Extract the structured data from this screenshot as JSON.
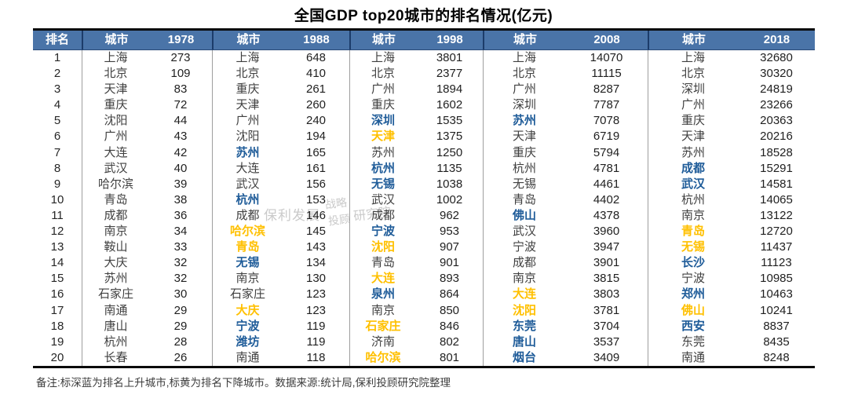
{
  "chart_data": {
    "type": "table",
    "title": "全国GDP top20城市的排名情况(亿元)",
    "rank_header": "排名",
    "city_header": "城市",
    "years": [
      "1978",
      "1988",
      "1998",
      "2008",
      "2018"
    ],
    "color_coding": {
      "up_city_blue": "#1f5c99",
      "down_city_yellow": "#ffc000",
      "header_background": "#4a74a8"
    },
    "rows": [
      {
        "rank": "1",
        "e": [
          [
            "上海",
            "273",
            "n"
          ],
          [
            "上海",
            "648",
            "n"
          ],
          [
            "上海",
            "3801",
            "n"
          ],
          [
            "上海",
            "14070",
            "n"
          ],
          [
            "上海",
            "32680",
            "n"
          ]
        ]
      },
      {
        "rank": "2",
        "e": [
          [
            "北京",
            "109",
            "n"
          ],
          [
            "北京",
            "410",
            "n"
          ],
          [
            "北京",
            "2377",
            "n"
          ],
          [
            "北京",
            "11115",
            "n"
          ],
          [
            "北京",
            "30320",
            "n"
          ]
        ]
      },
      {
        "rank": "3",
        "e": [
          [
            "天津",
            "83",
            "n"
          ],
          [
            "重庆",
            "261",
            "n"
          ],
          [
            "广州",
            "1894",
            "n"
          ],
          [
            "广州",
            "8287",
            "n"
          ],
          [
            "深圳",
            "24819",
            "n"
          ]
        ]
      },
      {
        "rank": "4",
        "e": [
          [
            "重庆",
            "72",
            "n"
          ],
          [
            "天津",
            "260",
            "n"
          ],
          [
            "重庆",
            "1602",
            "n"
          ],
          [
            "深圳",
            "7787",
            "n"
          ],
          [
            "广州",
            "23266",
            "n"
          ]
        ]
      },
      {
        "rank": "5",
        "e": [
          [
            "沈阳",
            "44",
            "n"
          ],
          [
            "广州",
            "240",
            "n"
          ],
          [
            "深圳",
            "1535",
            "u"
          ],
          [
            "苏州",
            "7078",
            "u"
          ],
          [
            "重庆",
            "20363",
            "n"
          ]
        ]
      },
      {
        "rank": "6",
        "e": [
          [
            "广州",
            "43",
            "n"
          ],
          [
            "沈阳",
            "194",
            "n"
          ],
          [
            "天津",
            "1375",
            "d"
          ],
          [
            "天津",
            "6719",
            "n"
          ],
          [
            "天津",
            "20216",
            "n"
          ]
        ]
      },
      {
        "rank": "7",
        "e": [
          [
            "大连",
            "42",
            "n"
          ],
          [
            "苏州",
            "165",
            "u"
          ],
          [
            "苏州",
            "1250",
            "n"
          ],
          [
            "重庆",
            "5794",
            "n"
          ],
          [
            "苏州",
            "18528",
            "n"
          ]
        ]
      },
      {
        "rank": "8",
        "e": [
          [
            "武汉",
            "40",
            "n"
          ],
          [
            "大连",
            "161",
            "n"
          ],
          [
            "杭州",
            "1135",
            "u"
          ],
          [
            "杭州",
            "4781",
            "n"
          ],
          [
            "成都",
            "15291",
            "u"
          ]
        ]
      },
      {
        "rank": "9",
        "e": [
          [
            "哈尔滨",
            "39",
            "n"
          ],
          [
            "武汉",
            "156",
            "n"
          ],
          [
            "无锡",
            "1038",
            "u"
          ],
          [
            "无锡",
            "4461",
            "n"
          ],
          [
            "武汉",
            "14581",
            "u"
          ]
        ]
      },
      {
        "rank": "10",
        "e": [
          [
            "青岛",
            "38",
            "n"
          ],
          [
            "杭州",
            "153",
            "u"
          ],
          [
            "武汉",
            "1002",
            "n"
          ],
          [
            "青岛",
            "4402",
            "n"
          ],
          [
            "杭州",
            "14065",
            "n"
          ]
        ]
      },
      {
        "rank": "11",
        "e": [
          [
            "成都",
            "36",
            "n"
          ],
          [
            "成都",
            "146",
            "n"
          ],
          [
            "成都",
            "962",
            "n"
          ],
          [
            "佛山",
            "4378",
            "u"
          ],
          [
            "南京",
            "13122",
            "n"
          ]
        ]
      },
      {
        "rank": "12",
        "e": [
          [
            "南京",
            "34",
            "n"
          ],
          [
            "哈尔滨",
            "145",
            "d"
          ],
          [
            "宁波",
            "953",
            "u"
          ],
          [
            "武汉",
            "3960",
            "n"
          ],
          [
            "青岛",
            "12720",
            "d"
          ]
        ]
      },
      {
        "rank": "13",
        "e": [
          [
            "鞍山",
            "33",
            "n"
          ],
          [
            "青岛",
            "143",
            "d"
          ],
          [
            "沈阳",
            "907",
            "d"
          ],
          [
            "宁波",
            "3947",
            "n"
          ],
          [
            "无锡",
            "11437",
            "d"
          ]
        ]
      },
      {
        "rank": "14",
        "e": [
          [
            "大庆",
            "32",
            "n"
          ],
          [
            "无锡",
            "134",
            "u"
          ],
          [
            "青岛",
            "901",
            "n"
          ],
          [
            "成都",
            "3901",
            "n"
          ],
          [
            "长沙",
            "11123",
            "u"
          ]
        ]
      },
      {
        "rank": "15",
        "e": [
          [
            "苏州",
            "32",
            "n"
          ],
          [
            "南京",
            "130",
            "n"
          ],
          [
            "大连",
            "893",
            "d"
          ],
          [
            "南京",
            "3815",
            "n"
          ],
          [
            "宁波",
            "10985",
            "n"
          ]
        ]
      },
      {
        "rank": "16",
        "e": [
          [
            "石家庄",
            "30",
            "n"
          ],
          [
            "石家庄",
            "123",
            "n"
          ],
          [
            "泉州",
            "864",
            "u"
          ],
          [
            "大连",
            "3803",
            "d"
          ],
          [
            "郑州",
            "10463",
            "u"
          ]
        ]
      },
      {
        "rank": "17",
        "e": [
          [
            "南通",
            "29",
            "n"
          ],
          [
            "大庆",
            "123",
            "d"
          ],
          [
            "南京",
            "850",
            "n"
          ],
          [
            "沈阳",
            "3781",
            "d"
          ],
          [
            "佛山",
            "10241",
            "d"
          ]
        ]
      },
      {
        "rank": "18",
        "e": [
          [
            "唐山",
            "29",
            "n"
          ],
          [
            "宁波",
            "119",
            "u"
          ],
          [
            "石家庄",
            "846",
            "d"
          ],
          [
            "东莞",
            "3704",
            "u"
          ],
          [
            "西安",
            "8837",
            "u"
          ]
        ]
      },
      {
        "rank": "19",
        "e": [
          [
            "杭州",
            "28",
            "n"
          ],
          [
            "潍坊",
            "119",
            "u"
          ],
          [
            "济南",
            "802",
            "n"
          ],
          [
            "唐山",
            "3537",
            "u"
          ],
          [
            "东莞",
            "8435",
            "n"
          ]
        ]
      },
      {
        "rank": "20",
        "e": [
          [
            "长春",
            "26",
            "n"
          ],
          [
            "南通",
            "118",
            "n"
          ],
          [
            "哈尔滨",
            "801",
            "d"
          ],
          [
            "烟台",
            "3409",
            "u"
          ],
          [
            "南通",
            "8248",
            "n"
          ]
        ]
      }
    ],
    "note": "备注:标深蓝为排名上升城市,标黄为排名下降城市。数据来源:统计局,保利投顾研究院整理"
  },
  "watermark": {
    "w1": "保利发展",
    "w2": "战略",
    "w3": "投顾",
    "w4": "研究院"
  }
}
